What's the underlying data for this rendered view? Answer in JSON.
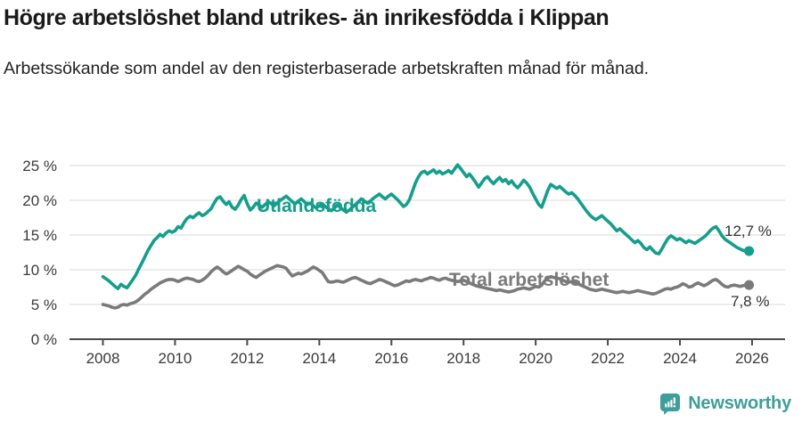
{
  "header": {
    "title": "Högre arbetslöshet bland utrikes- än inrikesfödda i Klippan",
    "subtitle": "Arbetssökande som andel av den registerbaserade arbetskraften månad för månad."
  },
  "footer": {
    "brand": "Newsworthy",
    "brand_color": "#3f9e99"
  },
  "chart_data": {
    "type": "line",
    "title": "Högre arbetslöshet bland utrikes- än inrikesfödda i Klippan",
    "subtitle": "Arbetssökande som andel av den registerbaserade arbetskraften månad för månad.",
    "xlabel": "",
    "ylabel": "",
    "unit": "%",
    "frequency": "monthly",
    "x_start_year": 2008,
    "xlim": [
      2007.1,
      2026.9
    ],
    "ylim": [
      0,
      27
    ],
    "grid": "horizontal",
    "grid_color": "#dadada",
    "axis_color": "#4a4a4a",
    "y_ticks": [
      {
        "value": 0,
        "label": "0 %"
      },
      {
        "value": 5,
        "label": "5 %"
      },
      {
        "value": 10,
        "label": "10 %"
      },
      {
        "value": 15,
        "label": "15 %"
      },
      {
        "value": 20,
        "label": "20 %"
      },
      {
        "value": 25,
        "label": "25 %"
      }
    ],
    "x_ticks": [
      {
        "value": 2008,
        "label": "2008"
      },
      {
        "value": 2010,
        "label": "2010"
      },
      {
        "value": 2012,
        "label": "2012"
      },
      {
        "value": 2014,
        "label": "2014"
      },
      {
        "value": 2016,
        "label": "2016"
      },
      {
        "value": 2018,
        "label": "2018"
      },
      {
        "value": 2020,
        "label": "2020"
      },
      {
        "value": 2022,
        "label": "2022"
      },
      {
        "value": 2024,
        "label": "2024"
      },
      {
        "value": 2026,
        "label": "2026"
      }
    ],
    "legend_position": "inline-labels",
    "series": [
      {
        "id": "utlandsfodda",
        "name": "Utlandsfödda",
        "color": "#149e8c",
        "end_value": 12.7,
        "end_label": "12,7 %",
        "values": [
          9.0,
          8.7,
          8.4,
          8.0,
          7.6,
          7.3,
          7.9,
          7.6,
          7.4,
          8.0,
          8.6,
          9.3,
          10.2,
          11.0,
          11.9,
          12.8,
          13.5,
          14.2,
          14.6,
          15.1,
          14.8,
          15.3,
          15.6,
          15.4,
          15.6,
          16.2,
          16.0,
          16.8,
          17.4,
          17.7,
          17.5,
          17.9,
          18.2,
          17.8,
          18.0,
          18.4,
          18.8,
          19.6,
          20.3,
          20.5,
          19.9,
          19.4,
          19.8,
          19.0,
          18.7,
          19.3,
          20.1,
          20.7,
          19.5,
          18.6,
          19.0,
          19.6,
          19.3,
          19.0,
          19.4,
          19.8,
          19.5,
          19.2,
          19.6,
          20.0,
          20.3,
          20.6,
          20.2,
          19.8,
          19.5,
          19.9,
          20.2,
          19.8,
          19.4,
          19.6,
          19.2,
          18.9,
          19.2,
          19.5,
          19.1,
          18.8,
          18.5,
          18.9,
          19.3,
          19.0,
          18.6,
          18.3,
          18.6,
          19.0,
          19.4,
          19.8,
          20.2,
          19.9,
          19.6,
          19.9,
          20.3,
          20.6,
          20.9,
          20.5,
          20.2,
          20.6,
          20.9,
          20.5,
          20.1,
          19.6,
          19.1,
          19.4,
          20.1,
          21.3,
          22.5,
          23.4,
          24.0,
          24.2,
          23.8,
          24.1,
          24.4,
          23.9,
          24.2,
          23.8,
          24.0,
          24.3,
          23.9,
          24.5,
          25.1,
          24.6,
          24.0,
          23.4,
          23.8,
          23.2,
          22.6,
          21.9,
          22.5,
          23.1,
          23.4,
          22.8,
          22.4,
          22.9,
          23.3,
          22.7,
          23.0,
          22.4,
          22.8,
          22.2,
          21.8,
          22.3,
          22.9,
          22.5,
          21.9,
          21.0,
          20.2,
          19.4,
          19.0,
          20.2,
          21.4,
          22.3,
          22.0,
          21.7,
          22.0,
          21.6,
          21.2,
          20.9,
          21.1,
          20.7,
          20.2,
          19.6,
          19.0,
          18.4,
          17.9,
          17.5,
          17.2,
          17.5,
          17.8,
          17.4,
          17.0,
          16.6,
          16.1,
          15.6,
          15.9,
          15.5,
          15.1,
          14.7,
          14.3,
          13.9,
          14.2,
          13.8,
          13.2,
          12.9,
          13.3,
          12.8,
          12.4,
          12.3,
          13.0,
          13.8,
          14.5,
          14.9,
          14.6,
          14.3,
          14.5,
          14.2,
          13.9,
          14.2,
          14.0,
          13.8,
          14.1,
          14.4,
          14.7,
          15.1,
          15.6,
          16.0,
          16.2,
          15.6,
          14.9,
          14.4,
          14.1,
          13.8,
          13.5,
          13.2,
          13.0,
          12.8,
          12.7,
          12.7
        ]
      },
      {
        "id": "total",
        "name": "Total arbetslöshet",
        "color": "#7a7a7a",
        "end_value": 7.8,
        "end_label": "7,8 %",
        "values": [
          5.0,
          4.9,
          4.8,
          4.6,
          4.5,
          4.6,
          4.9,
          5.0,
          4.9,
          5.1,
          5.2,
          5.4,
          5.7,
          6.1,
          6.5,
          6.8,
          7.2,
          7.5,
          7.8,
          8.1,
          8.3,
          8.5,
          8.6,
          8.6,
          8.5,
          8.3,
          8.5,
          8.7,
          8.8,
          8.7,
          8.6,
          8.4,
          8.3,
          8.5,
          8.8,
          9.2,
          9.7,
          10.1,
          10.4,
          10.1,
          9.7,
          9.4,
          9.6,
          9.9,
          10.2,
          10.5,
          10.3,
          10.0,
          9.8,
          9.4,
          9.1,
          8.9,
          9.2,
          9.5,
          9.8,
          10.0,
          10.2,
          10.4,
          10.6,
          10.5,
          10.4,
          10.2,
          9.6,
          9.1,
          9.3,
          9.5,
          9.4,
          9.6,
          9.8,
          10.1,
          10.4,
          10.2,
          9.9,
          9.6,
          8.9,
          8.3,
          8.2,
          8.3,
          8.4,
          8.3,
          8.2,
          8.4,
          8.6,
          8.8,
          8.9,
          8.7,
          8.5,
          8.3,
          8.1,
          8.0,
          8.2,
          8.4,
          8.6,
          8.5,
          8.3,
          8.1,
          7.9,
          7.7,
          7.8,
          8.0,
          8.2,
          8.4,
          8.3,
          8.5,
          8.6,
          8.5,
          8.4,
          8.6,
          8.7,
          8.9,
          8.8,
          8.6,
          8.5,
          8.7,
          8.8,
          8.6,
          8.5,
          8.4,
          8.3,
          8.4,
          8.5,
          8.3,
          8.1,
          7.9,
          7.7,
          7.6,
          7.5,
          7.4,
          7.3,
          7.2,
          7.1,
          7.0,
          7.1,
          7.0,
          6.9,
          6.8,
          6.9,
          7.0,
          7.2,
          7.3,
          7.4,
          7.3,
          7.2,
          7.4,
          7.6,
          7.5,
          7.8,
          8.4,
          8.8,
          9.0,
          8.9,
          8.8,
          8.7,
          8.5,
          8.3,
          8.2,
          8.3,
          8.2,
          8.0,
          7.8,
          7.6,
          7.4,
          7.2,
          7.1,
          7.0,
          7.1,
          7.2,
          7.1,
          7.0,
          6.9,
          6.8,
          6.7,
          6.8,
          6.9,
          6.8,
          6.7,
          6.8,
          6.9,
          7.0,
          6.9,
          6.8,
          6.7,
          6.6,
          6.5,
          6.6,
          6.8,
          7.0,
          7.2,
          7.3,
          7.2,
          7.4,
          7.5,
          7.7,
          8.0,
          7.8,
          7.5,
          7.6,
          7.9,
          8.1,
          7.9,
          7.7,
          7.9,
          8.2,
          8.5,
          8.6,
          8.3,
          7.9,
          7.6,
          7.5,
          7.7,
          7.8,
          7.7,
          7.6,
          7.7,
          7.8,
          7.8
        ]
      }
    ]
  }
}
